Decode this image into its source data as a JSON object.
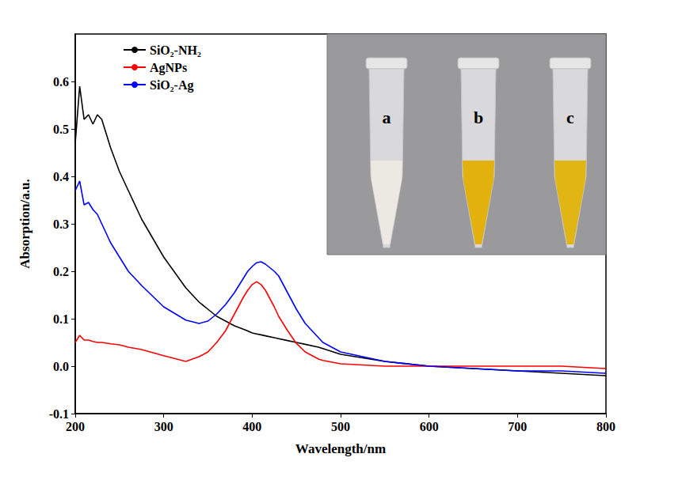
{
  "chart_data": {
    "type": "line",
    "x_label": "Wavelength/nm",
    "y_label": "Absorption/a.u.",
    "x": [
      200,
      205,
      210,
      215,
      220,
      225,
      230,
      240,
      250,
      260,
      275,
      300,
      325,
      340,
      350,
      360,
      370,
      380,
      390,
      395,
      400,
      405,
      410,
      415,
      425,
      430,
      440,
      450,
      460,
      475,
      480,
      500,
      550,
      600,
      650,
      700,
      750,
      800
    ],
    "series": [
      {
        "name": "SiO₂-NH₂",
        "color": "#000000",
        "values": [
          0.47,
          0.59,
          0.52,
          0.53,
          0.51,
          0.53,
          0.52,
          0.46,
          0.41,
          0.37,
          0.31,
          0.23,
          0.165,
          0.135,
          0.12,
          0.105,
          0.095,
          0.085,
          0.078,
          0.074,
          0.07,
          0.068,
          0.066,
          0.064,
          0.06,
          0.058,
          0.054,
          0.05,
          0.046,
          0.04,
          0.037,
          0.025,
          0.01,
          0,
          -0.005,
          -0.01,
          -0.015,
          -0.02
        ]
      },
      {
        "name": "AgNPs",
        "color": "#ff0000",
        "values": [
          0.05,
          0.065,
          0.055,
          0.055,
          0.052,
          0.05,
          0.05,
          0.047,
          0.045,
          0.04,
          0.035,
          0.022,
          0.01,
          0.02,
          0.03,
          0.05,
          0.075,
          0.11,
          0.145,
          0.16,
          0.172,
          0.178,
          0.172,
          0.16,
          0.125,
          0.105,
          0.075,
          0.048,
          0.03,
          0.015,
          0.012,
          0.005,
          0,
          0,
          0,
          0,
          0,
          -0.005
        ]
      },
      {
        "name": "SiO₂-Ag",
        "color": "#0000ff",
        "values": [
          0.37,
          0.39,
          0.34,
          0.345,
          0.33,
          0.32,
          0.3,
          0.26,
          0.23,
          0.2,
          0.17,
          0.125,
          0.097,
          0.09,
          0.095,
          0.11,
          0.13,
          0.155,
          0.185,
          0.2,
          0.21,
          0.218,
          0.22,
          0.215,
          0.2,
          0.19,
          0.155,
          0.12,
          0.09,
          0.06,
          0.05,
          0.03,
          0.01,
          0,
          -0.005,
          -0.01,
          -0.01,
          -0.015
        ]
      }
    ],
    "xlim": [
      200,
      800
    ],
    "xticks": [
      200,
      300,
      400,
      500,
      600,
      700,
      800
    ],
    "ylim": [
      -0.1,
      0.7
    ],
    "yticks": [
      -0.1,
      {
        "value": 0,
        "label": "0.0"
      },
      0.1,
      0.2,
      0.3,
      0.4,
      0.5,
      0.6
    ],
    "grid": false,
    "legend": "upper left",
    "annotations": [
      "a",
      "b",
      "c"
    ]
  }
}
